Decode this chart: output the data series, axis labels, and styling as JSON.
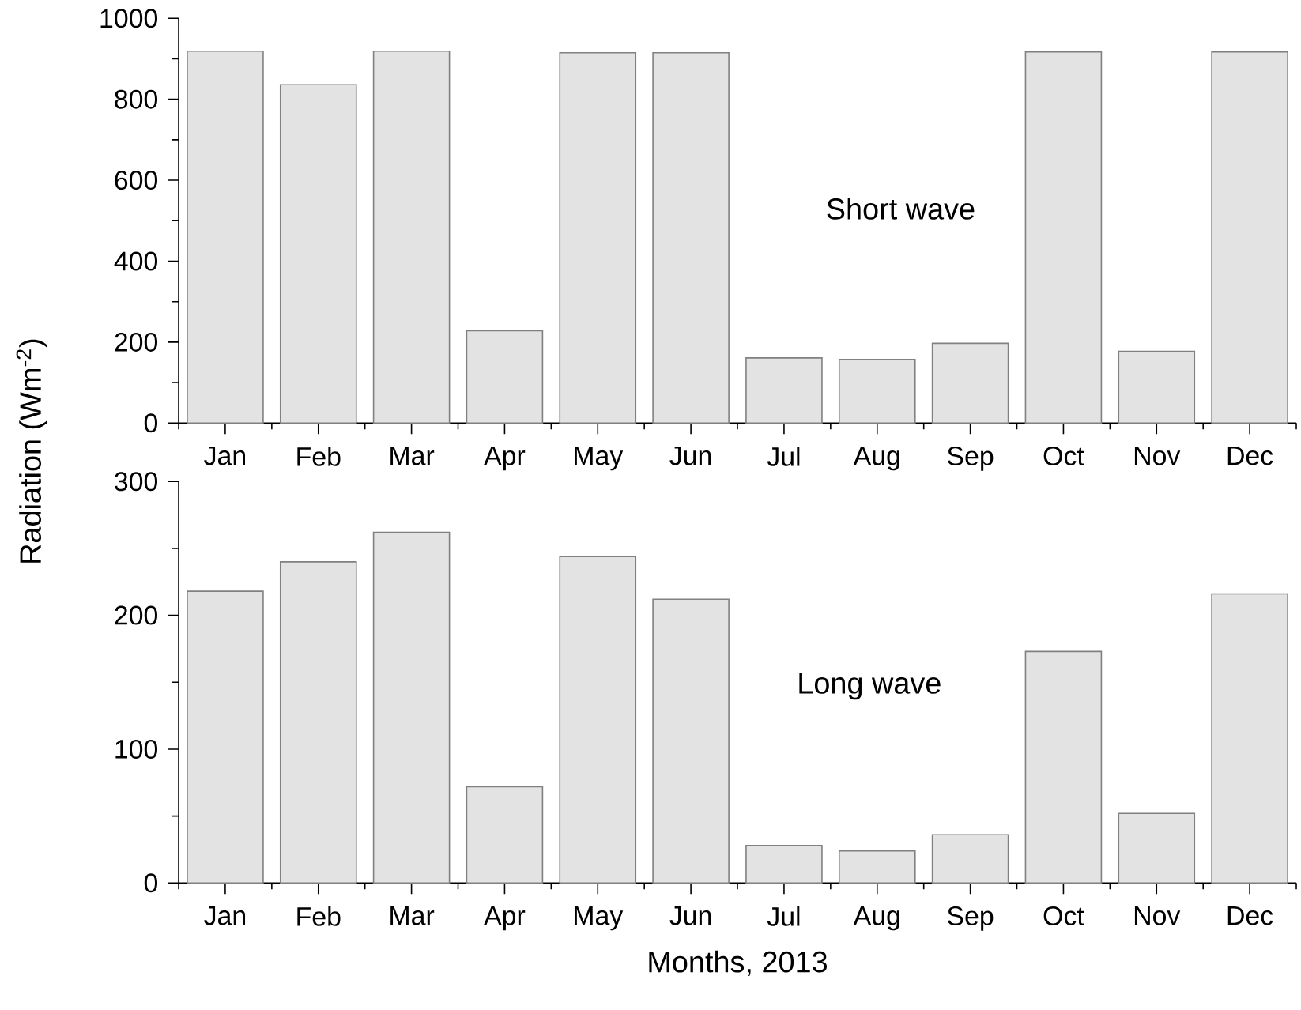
{
  "chart_data": [
    {
      "type": "bar",
      "categories": [
        "Jan",
        "Feb",
        "Mar",
        "Apr",
        "May",
        "Jun",
        "Jul",
        "Aug",
        "Sep",
        "Oct",
        "Nov",
        "Dec"
      ],
      "series": [
        {
          "color": "#808080",
          "values": [
            919,
            836,
            919,
            228,
            915,
            915,
            161,
            157,
            197,
            917,
            177,
            917
          ]
        }
      ],
      "ylim": [
        0,
        1000
      ],
      "yticks": [
        0,
        200,
        400,
        600,
        800,
        1000
      ],
      "ylabel": "Radiation (Wm$^{-2}$)",
      "annotations": [
        "Short wave"
      ]
    },
    {
      "type": "bar",
      "categories": [
        "Jan",
        "Feb",
        "Mar",
        "Apr",
        "May",
        "Jun",
        "Jul",
        "Aug",
        "Sep",
        "Oct",
        "Nov",
        "Dec"
      ],
      "series": [
        {
          "color": "#808080",
          "values": [
            218,
            240,
            262,
            72,
            244,
            212,
            28,
            24,
            36,
            173,
            52,
            216
          ]
        }
      ],
      "ylim": [
        0,
        300
      ],
      "yticks": [
        0,
        100,
        200,
        300
      ],
      "xlabel": "Months, 2013",
      "annotations": [
        "Long wave"
      ]
    }
  ]
}
